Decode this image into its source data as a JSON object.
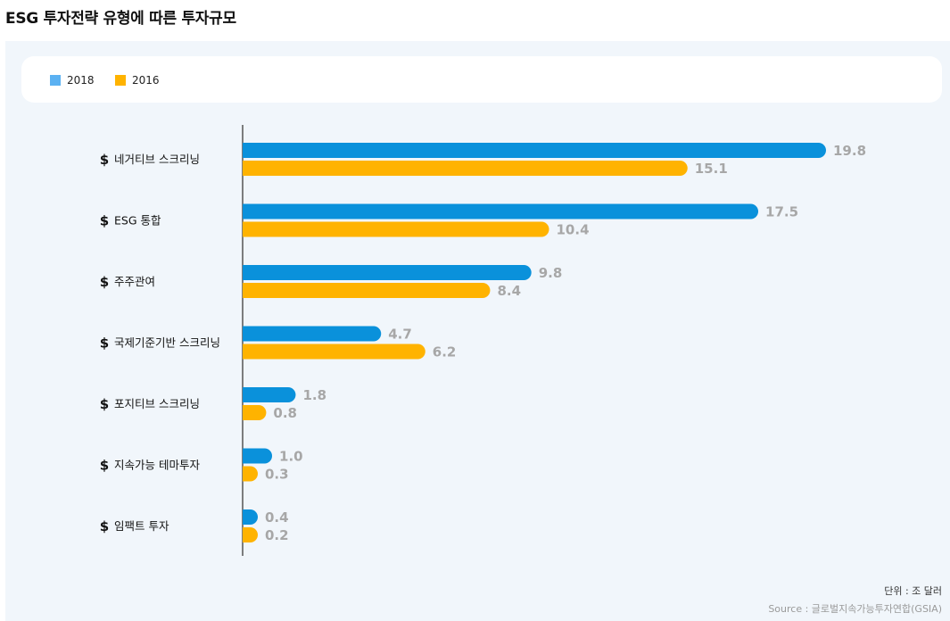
{
  "page": {
    "title": "ESG 투자전략 유형에 따른 투자규모",
    "unit": "단위 : 조 달러",
    "source": "Source : 글로벌지속가능투자연합(GSIA)"
  },
  "chart_data": {
    "type": "bar",
    "orientation": "horizontal",
    "title": "ESG 투자전략 유형에 따른 투자규모",
    "categories": [
      "네거티브 스크리닝",
      "ESG 통합",
      "주주관여",
      "국제기준기반 스크리닝",
      "포지티브 스크리닝",
      "지속가능 테마투자",
      "임팩트 투자"
    ],
    "series": [
      {
        "name": "2018",
        "color": "#0a91db",
        "values": [
          19.8,
          17.5,
          9.8,
          4.7,
          1.8,
          1.0,
          0.4
        ],
        "labels": [
          "19.8",
          "17.5",
          "9.8",
          "4.7",
          "1.8",
          "1.0",
          "0.4"
        ]
      },
      {
        "name": "2016",
        "color": "#ffb300",
        "values": [
          15.1,
          10.4,
          8.4,
          6.2,
          0.8,
          0.3,
          0.2
        ],
        "labels": [
          "15.1",
          "10.4",
          "8.4",
          "6.2",
          "0.8",
          "0.3",
          "0.2"
        ]
      }
    ],
    "xlim": [
      0,
      19.8
    ],
    "legend_position": "top-left",
    "category_icon": "dollar-icon",
    "category_icon_glyph": "$",
    "legend_colors": {
      "2018": "#5bb1f2",
      "2016": "#ffb300"
    },
    "grid": false
  }
}
